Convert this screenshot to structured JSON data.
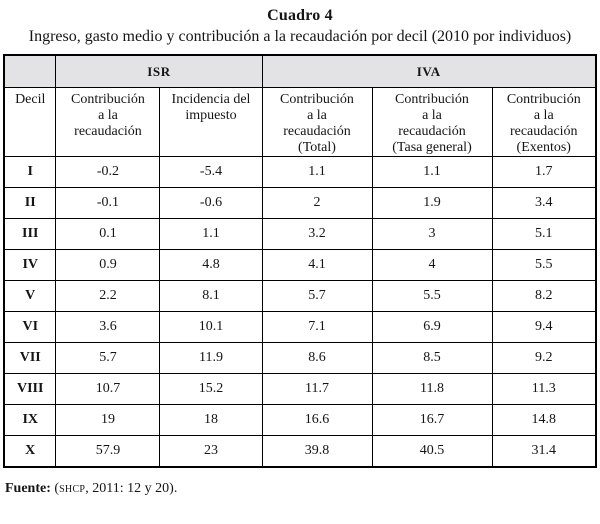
{
  "title": "Cuadro 4",
  "subtitle": "Ingreso, gasto medio y contribución a la recaudación por decil (2010 por individuos)",
  "table": {
    "group_headers": {
      "corner": "",
      "isr": "ISR",
      "iva": "IVA"
    },
    "column_headers": [
      "Decil",
      "Contribución\na la\nrecaudación",
      "Incidencia del\nimpuesto",
      "Contribución\na la\nrecaudación\n(Total)",
      "Contribución\na la\nrecaudación\n(Tasa general)",
      "Contribución\na la\nrecaudación\n(Exentos)"
    ],
    "rows": [
      {
        "decil": "I",
        "values": [
          "-0.2",
          "-5.4",
          "1.1",
          "1.1",
          "1.7"
        ]
      },
      {
        "decil": "II",
        "values": [
          "-0.1",
          "-0.6",
          "2",
          "1.9",
          "3.4"
        ]
      },
      {
        "decil": "III",
        "values": [
          "0.1",
          "1.1",
          "3.2",
          "3",
          "5.1"
        ]
      },
      {
        "decil": "IV",
        "values": [
          "0.9",
          "4.8",
          "4.1",
          "4",
          "5.5"
        ]
      },
      {
        "decil": "V",
        "values": [
          "2.2",
          "8.1",
          "5.7",
          "5.5",
          "8.2"
        ]
      },
      {
        "decil": "VI",
        "values": [
          "3.6",
          "10.1",
          "7.1",
          "6.9",
          "9.4"
        ]
      },
      {
        "decil": "VII",
        "values": [
          "5.7",
          "11.9",
          "8.6",
          "8.5",
          "9.2"
        ]
      },
      {
        "decil": "VIII",
        "values": [
          "10.7",
          "15.2",
          "11.7",
          "11.8",
          "11.3"
        ]
      },
      {
        "decil": "IX",
        "values": [
          "19",
          "18",
          "16.6",
          "16.7",
          "14.8"
        ]
      },
      {
        "decil": "X",
        "values": [
          "57.9",
          "23",
          "39.8",
          "40.5",
          "31.4"
        ]
      }
    ]
  },
  "source": {
    "label": "Fuente:",
    "pre": " (",
    "acronym": "shcp",
    "post": ", 2011: 12 y 20)."
  },
  "colors": {
    "header_bg": "#e3e3e5",
    "border": "#000000"
  }
}
